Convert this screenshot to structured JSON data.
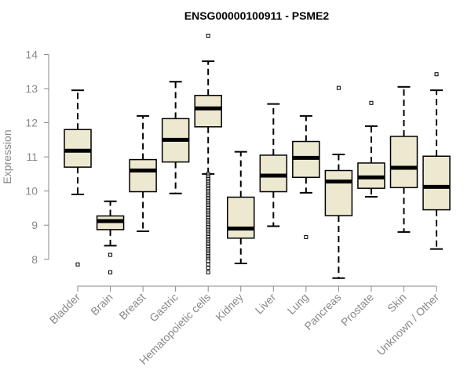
{
  "chart_data": {
    "type": "boxplot",
    "title": "ENSG00000100911 - PSME2",
    "xlabel": "",
    "ylabel": "Expression",
    "ylim": [
      7.3,
      14.6
    ],
    "yticks": [
      8,
      9,
      10,
      11,
      12,
      13,
      14
    ],
    "grid": false,
    "colors": {
      "box_fill": "#ede8d0",
      "stroke": "#000000",
      "axis": "#888888"
    },
    "categories": [
      "Bladder",
      "Brain",
      "Breast",
      "Gastric",
      "Hematopoietic cells",
      "Kidney",
      "Liver",
      "Lung",
      "Pancreas",
      "Prostate",
      "Skin",
      "Unknown / Other"
    ],
    "boxes": [
      {
        "whisker_low": 9.9,
        "q1": 10.7,
        "median": 11.18,
        "q3": 11.8,
        "whisker_high": 12.95,
        "outliers": [
          7.85
        ]
      },
      {
        "whisker_low": 8.4,
        "q1": 8.87,
        "median": 9.12,
        "q3": 9.27,
        "whisker_high": 9.7,
        "outliers": [
          8.13,
          7.62
        ]
      },
      {
        "whisker_low": 8.82,
        "q1": 9.98,
        "median": 10.6,
        "q3": 10.92,
        "whisker_high": 12.2,
        "outliers": []
      },
      {
        "whisker_low": 9.93,
        "q1": 10.85,
        "median": 11.5,
        "q3": 12.12,
        "whisker_high": 13.2,
        "outliers": []
      },
      {
        "whisker_low": 10.5,
        "q1": 11.88,
        "median": 12.42,
        "q3": 12.8,
        "whisker_high": 13.8,
        "outliers": [
          14.55,
          10.5,
          10.45,
          10.4,
          10.35,
          10.3,
          10.25,
          10.2,
          10.15,
          10.1,
          10.05,
          10.0,
          9.95,
          9.9,
          9.85,
          9.8,
          9.75,
          9.7,
          9.65,
          9.6,
          9.55,
          9.5,
          9.45,
          9.4,
          9.35,
          9.3,
          9.25,
          9.2,
          9.15,
          9.1,
          9.05,
          9.0,
          8.95,
          8.9,
          8.85,
          8.8,
          8.75,
          8.7,
          8.65,
          8.6,
          8.55,
          8.5,
          8.45,
          8.4,
          8.35,
          8.3,
          8.25,
          8.2,
          8.15,
          8.1,
          8.05,
          8.0,
          7.95,
          7.85,
          7.75,
          7.62
        ]
      },
      {
        "whisker_low": 7.88,
        "q1": 8.62,
        "median": 8.9,
        "q3": 9.82,
        "whisker_high": 11.15,
        "outliers": []
      },
      {
        "whisker_low": 8.97,
        "q1": 9.98,
        "median": 10.45,
        "q3": 11.05,
        "whisker_high": 12.55,
        "outliers": []
      },
      {
        "whisker_low": 9.95,
        "q1": 10.4,
        "median": 10.97,
        "q3": 11.45,
        "whisker_high": 12.2,
        "outliers": [
          8.65
        ]
      },
      {
        "whisker_low": 7.45,
        "q1": 9.28,
        "median": 10.28,
        "q3": 10.6,
        "whisker_high": 11.07,
        "outliers": [
          13.02
        ]
      },
      {
        "whisker_low": 9.83,
        "q1": 10.08,
        "median": 10.4,
        "q3": 10.82,
        "whisker_high": 11.9,
        "outliers": [
          12.58
        ]
      },
      {
        "whisker_low": 8.8,
        "q1": 10.1,
        "median": 10.68,
        "q3": 11.6,
        "whisker_high": 13.05,
        "outliers": []
      },
      {
        "whisker_low": 8.3,
        "q1": 9.45,
        "median": 10.12,
        "q3": 11.02,
        "whisker_high": 12.95,
        "outliers": [
          13.42
        ]
      }
    ]
  }
}
